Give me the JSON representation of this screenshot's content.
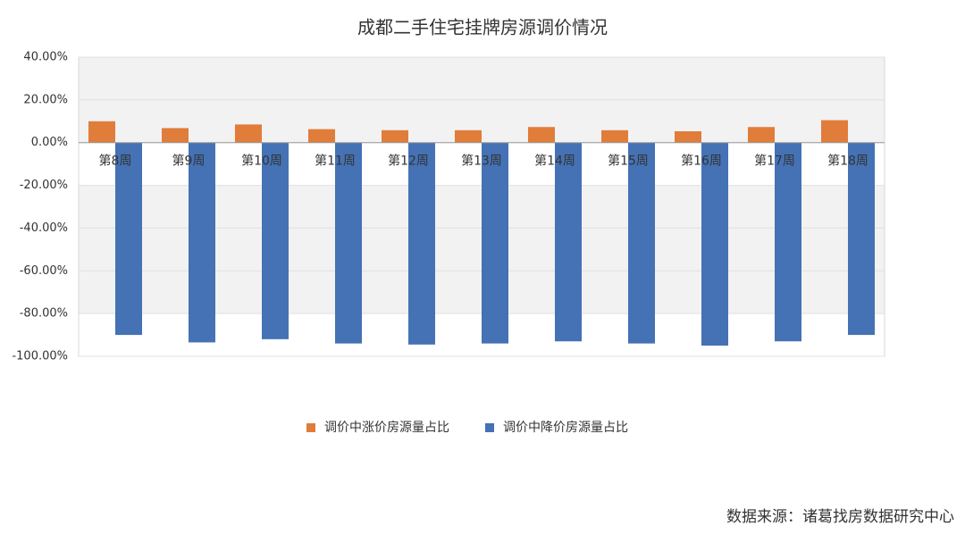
{
  "chart_data": {
    "type": "bar",
    "title": "成都二手住宅挂牌房源调价情况",
    "categories": [
      "第8周",
      "第9周",
      "第10周",
      "第11周",
      "第12周",
      "第13周",
      "第14周",
      "第15周",
      "第16周",
      "第17周",
      "第18周"
    ],
    "series": [
      {
        "name": "调价中涨价房源量占比",
        "color": "#e07d3b",
        "values": [
          10,
          6.8,
          8.5,
          6.3,
          5.8,
          5.8,
          7.3,
          5.8,
          5.3,
          7.3,
          10.5
        ]
      },
      {
        "name": "调价中降价房源量占比",
        "color": "#4472b4",
        "values": [
          -90,
          -93.5,
          -92,
          -94,
          -94.5,
          -94,
          -93,
          -94,
          -95,
          -93,
          -90
        ]
      }
    ],
    "ylim": [
      -100,
      40
    ],
    "yticks": [
      {
        "value": -100,
        "label": "-100.00%"
      },
      {
        "value": -80,
        "label": "-80.00%"
      },
      {
        "value": -60,
        "label": "-60.00%"
      },
      {
        "value": -40,
        "label": "-40.00%"
      },
      {
        "value": -20,
        "label": "-20.00%"
      },
      {
        "value": 0,
        "label": "0.00%"
      },
      {
        "value": 20,
        "label": "20.00%"
      },
      {
        "value": 40,
        "label": "40.00%"
      }
    ],
    "grid": true,
    "source": "数据来源：诸葛找房数据研究中心"
  }
}
